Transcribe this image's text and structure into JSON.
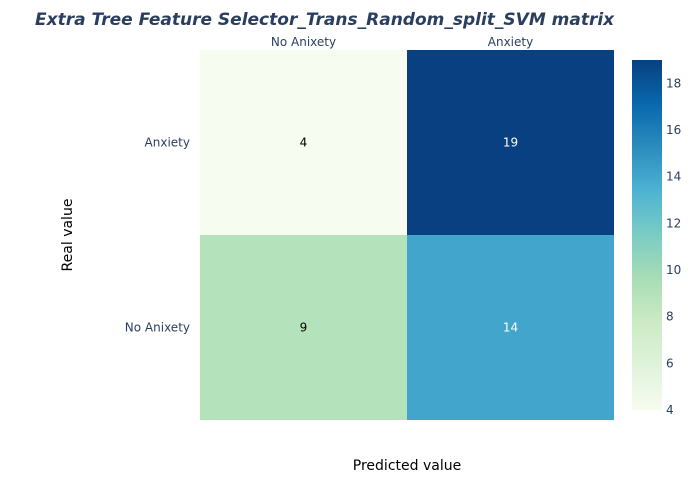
{
  "chart_data": {
    "type": "heatmap",
    "title": "Extra Tree Feature Selector_Trans_Random_split_SVM matrix",
    "xlabel": "Predicted value",
    "ylabel": "Real value",
    "x_categories": [
      "No Anixety",
      "Anxiety"
    ],
    "y_categories": [
      "Anxiety",
      "No Anixety"
    ],
    "z": [
      [
        4,
        19
      ],
      [
        9,
        14
      ]
    ],
    "colorscale": "GnBu",
    "colorbar": {
      "range": [
        4,
        19
      ],
      "ticks": [
        4,
        6,
        8,
        10,
        12,
        14,
        16,
        18
      ]
    },
    "x_axis_position": "top"
  }
}
